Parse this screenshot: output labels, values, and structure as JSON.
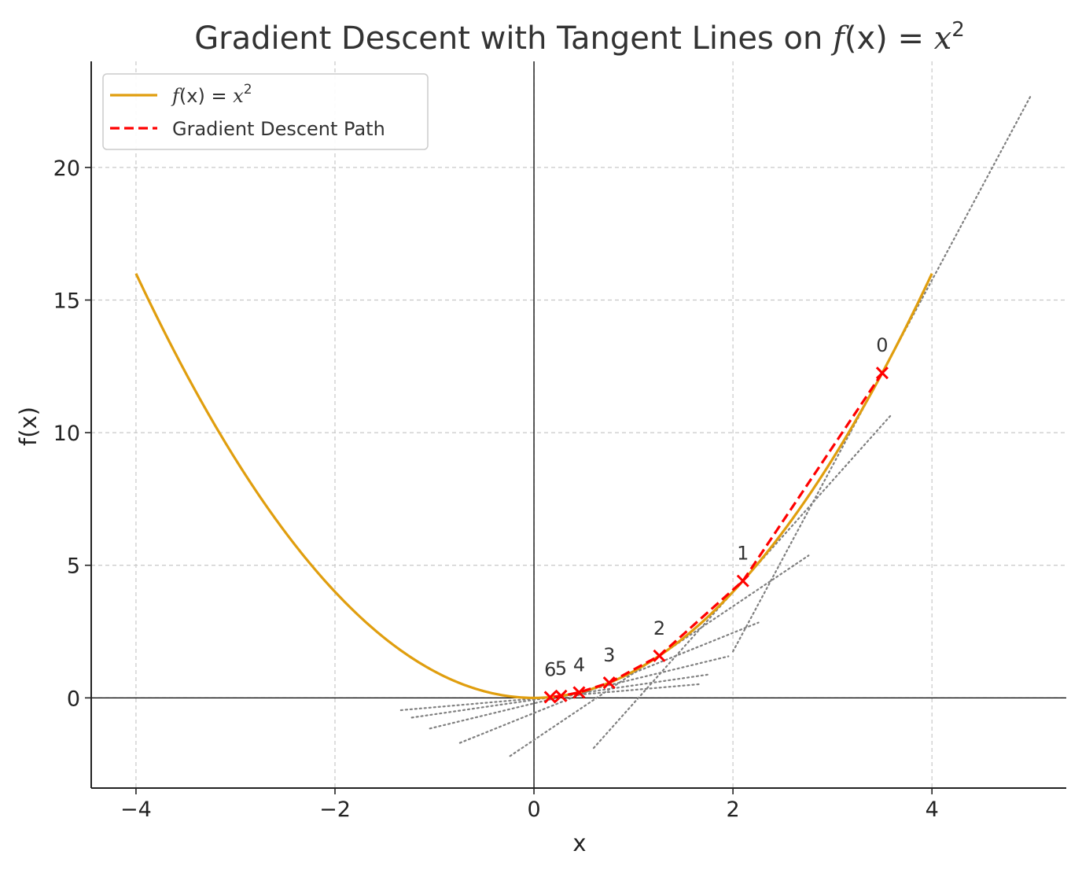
{
  "chart_data": {
    "type": "line",
    "title": {
      "prefix": "Gradient Descent with Tangent Lines on ",
      "func": "f",
      "args": "(x) = ",
      "var": "x",
      "exp": "2"
    },
    "xlabel": "x",
    "ylabel": "f(x)",
    "xlim": [
      -4.45,
      5.35
    ],
    "ylim": [
      -3.4,
      24.0
    ],
    "xticks": [
      -4,
      -2,
      0,
      2,
      4
    ],
    "yticks": [
      0,
      5,
      10,
      15,
      20
    ],
    "xtick_labels": [
      "−4",
      "−2",
      "0",
      "2",
      "4"
    ],
    "ytick_labels": [
      "0",
      "5",
      "10",
      "15",
      "20"
    ],
    "grid": true,
    "legend_position": "top-left",
    "legend": {
      "curve": {
        "func": "f",
        "args": "(x) = ",
        "var": "x",
        "exp": "2"
      },
      "path": "Gradient Descent Path"
    },
    "curve": {
      "expression": "x^2",
      "x_range": [
        -4,
        4
      ],
      "color": "#e09e0e"
    },
    "gd_path": {
      "color": "#ff0000",
      "steps": [
        {
          "label": "0",
          "x": 3.5,
          "y": 12.25
        },
        {
          "label": "1",
          "x": 2.1,
          "y": 4.41
        },
        {
          "label": "2",
          "x": 1.26,
          "y": 1.5876
        },
        {
          "label": "3",
          "x": 0.756,
          "y": 0.5715
        },
        {
          "label": "4",
          "x": 0.4536,
          "y": 0.2058
        },
        {
          "label": "5",
          "x": 0.2722,
          "y": 0.0741
        },
        {
          "label": "6",
          "x": 0.1633,
          "y": 0.0267
        }
      ]
    },
    "tangent_lines": {
      "color": "#808080",
      "lines": [
        {
          "x0": 3.5,
          "x_range": [
            2.0,
            5.0
          ]
        },
        {
          "x0": 2.1,
          "x_range": [
            0.6,
            3.6
          ]
        },
        {
          "x0": 1.26,
          "x_range": [
            -0.24,
            2.76
          ]
        },
        {
          "x0": 0.756,
          "x_range": [
            -0.744,
            2.256
          ]
        },
        {
          "x0": 0.4536,
          "x_range": [
            -1.046,
            1.954
          ]
        },
        {
          "x0": 0.2722,
          "x_range": [
            -1.228,
            1.772
          ]
        },
        {
          "x0": 0.1633,
          "x_range": [
            -1.337,
            1.663
          ]
        }
      ]
    },
    "colors": {
      "axis": "#222222",
      "zero_line": "#000000"
    }
  }
}
